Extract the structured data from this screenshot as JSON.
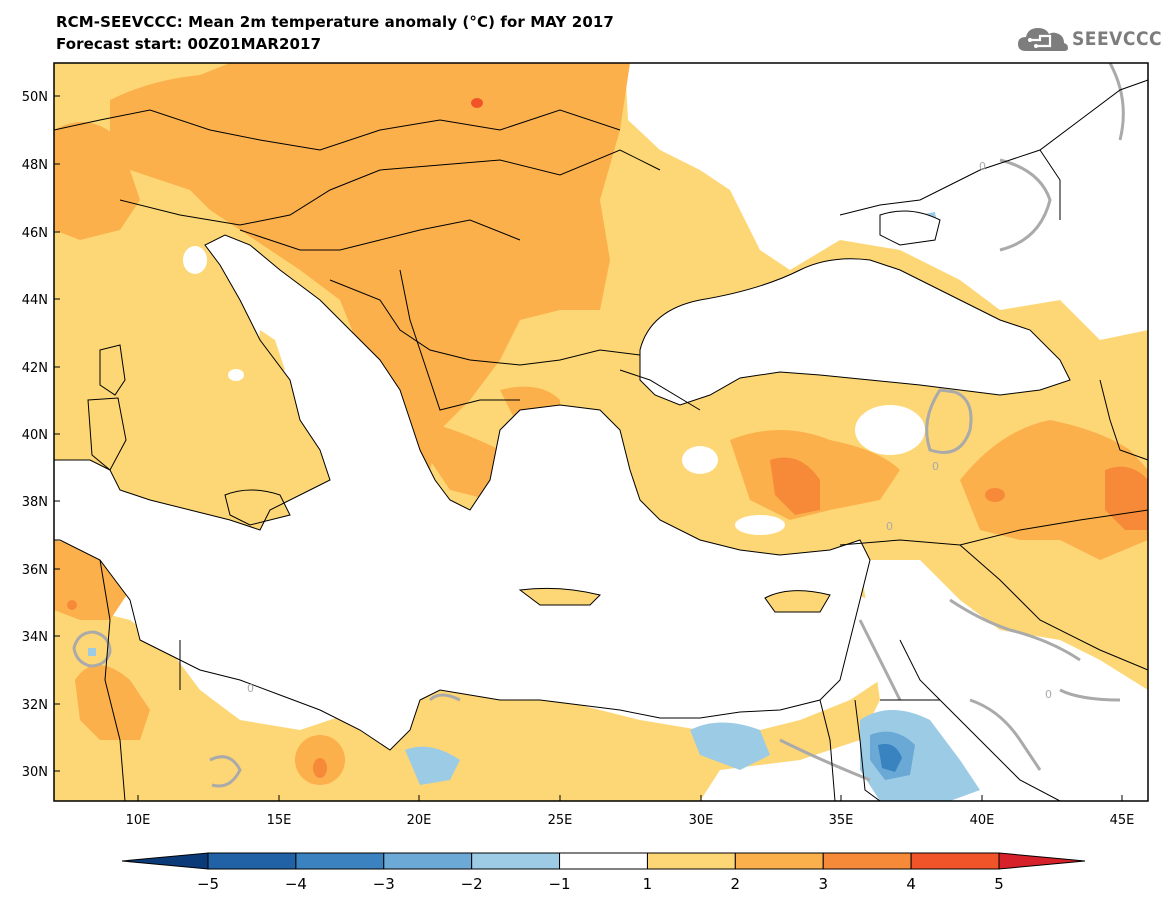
{
  "title_line1": "RCM-SEEVCCC: Mean 2m temperature anomaly (°C) for MAY 2017",
  "title_line2": "Forecast start: 00Z01MAR2017",
  "logo": {
    "text": "SEEVCCC",
    "icon": "cloud-icon"
  },
  "map": {
    "lon_range": [
      7,
      46
    ],
    "lat_range": [
      29,
      51
    ],
    "lat_ticks": [
      "50N",
      "48N",
      "46N",
      "44N",
      "42N",
      "40N",
      "38N",
      "36N",
      "34N",
      "32N",
      "30N"
    ],
    "lon_ticks": [
      "10E",
      "15E",
      "20E",
      "25E",
      "30E",
      "35E",
      "40E",
      "45E"
    ],
    "contour_label": "0",
    "colors": {
      "sea": "#ffffff",
      "a1_2": "#fdd775",
      "a2_3": "#fbb04c",
      "a3_4": "#f78a39",
      "a4_5": "#f2542a",
      "n1_2": "#9ccbe5",
      "n2_3": "#6aa8d6",
      "n3_4": "#3a83c1",
      "zero_contour": "#aaaaaa",
      "borders": "#000000"
    }
  },
  "colorbar": {
    "labels": [
      "−5",
      "−4",
      "−3",
      "−2",
      "−1",
      "1",
      "2",
      "3",
      "4",
      "5"
    ],
    "colors": [
      "#0b3a78",
      "#2162a6",
      "#3b82c0",
      "#6ca9d6",
      "#9dcbe5",
      "#ffffff",
      "#fdd775",
      "#fbb04c",
      "#f78a39",
      "#f2542a",
      "#d6212a"
    ]
  }
}
